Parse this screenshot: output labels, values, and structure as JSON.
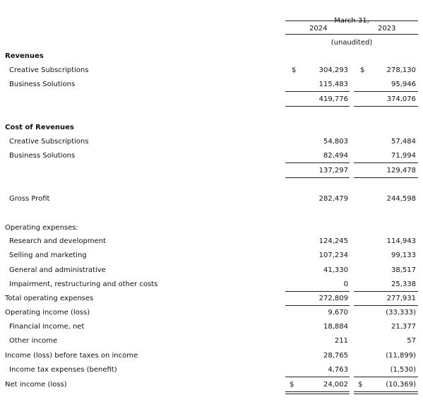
{
  "header": {
    "period": "March 31,",
    "year1": "2024",
    "year2": "2023",
    "note": "(unaudited)"
  },
  "currency": "$",
  "sections": {
    "revenues": "Revenues",
    "cost_of_revenues": "Cost of Revenues",
    "operating_expenses": "Operating expenses:"
  },
  "rows": [
    {
      "label": "Creative Subscriptions",
      "v2024": "304,293",
      "v2023": "278,130"
    },
    {
      "label": "Business Solutions",
      "v2024": "115,483",
      "v2023": "95,946"
    },
    {
      "label": "",
      "v2024": "419,776",
      "v2023": "374,076"
    },
    {
      "label": "Creative Subscriptions",
      "v2024": "54,803",
      "v2023": "57,484"
    },
    {
      "label": "Business Solutions",
      "v2024": "82,494",
      "v2023": "71,994"
    },
    {
      "label": "",
      "v2024": "137,297",
      "v2023": "129,478"
    },
    {
      "label": "Gross Profit",
      "v2024": "282,479",
      "v2023": "244,598"
    },
    {
      "label": "Research and development",
      "v2024": "124,245",
      "v2023": "114,943"
    },
    {
      "label": "Selling and marketing",
      "v2024": "107,234",
      "v2023": "99,133"
    },
    {
      "label": "General and administrative",
      "v2024": "41,330",
      "v2023": "38,517"
    },
    {
      "label": "Impairment, restructuring and other costs",
      "v2024": "0",
      "v2023": "25,338"
    },
    {
      "label": "Total operating expenses",
      "v2024": "272,809",
      "v2023": "277,931"
    },
    {
      "label": "Operating income (loss)",
      "v2024": "9,670",
      "v2023": "(33,333)"
    },
    {
      "label": "Financial income, net",
      "v2024": "18,884",
      "v2023": "21,377"
    },
    {
      "label": "Other income",
      "v2024": "211",
      "v2023": "57"
    },
    {
      "label": "Income (loss) before taxes on income",
      "v2024": "28,765",
      "v2023": "(11,899)"
    },
    {
      "label": "Income tax expenses (benefit)",
      "v2024": "4,763",
      "v2023": "(1,530)"
    },
    {
      "label": "Net income (loss)",
      "v2024": "24,002",
      "v2023": "(10,369)"
    }
  ]
}
